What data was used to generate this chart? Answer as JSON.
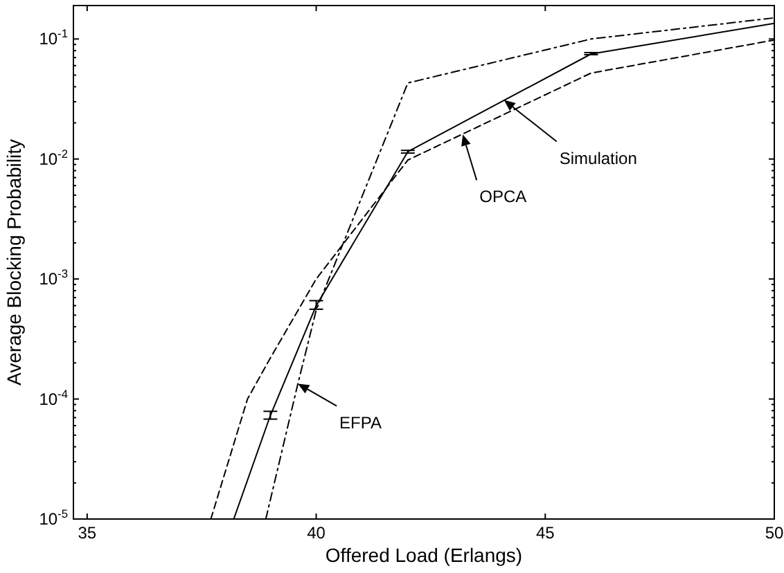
{
  "chart_data": {
    "type": "line",
    "xlabel": "Offered Load (Erlangs)",
    "ylabel": "Average Blocking Probability",
    "log": "y",
    "grid": false,
    "xlim": [
      34.7,
      50
    ],
    "xticks": [
      35,
      40,
      45,
      50
    ],
    "ylim": [
      1e-05,
      0.19
    ],
    "yticks": [
      {
        "value": 1e-05,
        "label": "10$^{-5}$"
      },
      {
        "value": 0.0001,
        "label": "10$^{-4}$"
      },
      {
        "value": 0.001,
        "label": "10$^{-3}$"
      },
      {
        "value": 0.01,
        "label": "10$^{-2}$"
      },
      {
        "value": 0.1,
        "label": "10$^{-1}$"
      }
    ],
    "series": [
      {
        "color": "#000000",
        "line_style": "solid",
        "x": [
          38.2,
          39,
          40,
          42,
          46,
          50
        ],
        "values": [
          1e-05,
          7.3e-05,
          0.0006,
          0.0115,
          0.075,
          0.135
        ],
        "errors": [
          null,
          [
            6.8e-05,
            7.9e-05
          ],
          [
            0.00056,
            0.00066
          ],
          [
            0.0112,
            0.0118
          ],
          [
            0.074,
            0.077
          ],
          null
        ]
      },
      {
        "color": "#000000",
        "line_style": "dashed",
        "x": [
          37.7,
          38.5,
          39,
          40,
          42,
          46,
          50
        ],
        "values": [
          1e-05,
          0.0001,
          0.00022,
          0.001,
          0.0098,
          0.052,
          0.098
        ]
      },
      {
        "color": "#000000",
        "line_style": "dash-dot",
        "x": [
          38.9,
          39.6,
          40,
          42,
          46,
          50
        ],
        "values": [
          1e-05,
          0.000134,
          0.00055,
          0.043,
          0.1,
          0.15
        ]
      }
    ],
    "annotations": [
      {
        "text": "Simulation",
        "x": 44.1,
        "y": 0.031
      },
      {
        "text": "OPCA",
        "x": 43.2,
        "y": 0.016
      },
      {
        "text": "EFPA",
        "x": 39.6,
        "y": 0.000134
      }
    ]
  }
}
